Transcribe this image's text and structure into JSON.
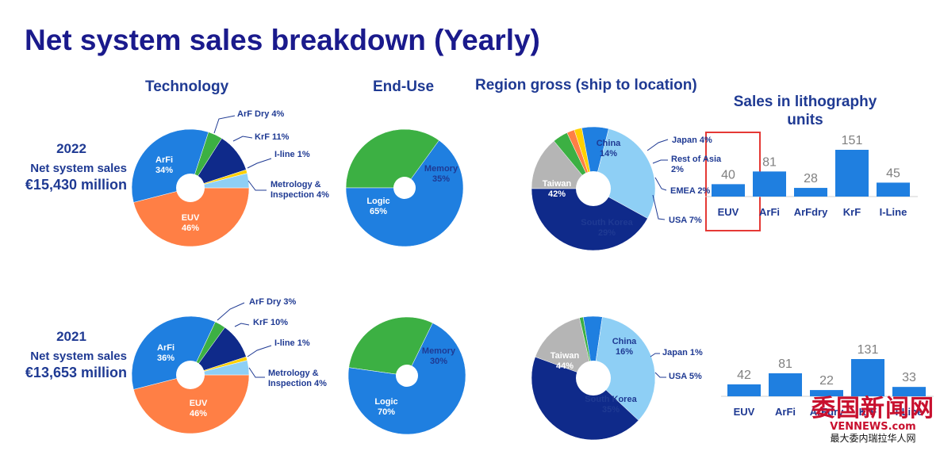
{
  "title": "Net system sales breakdown (Yearly)",
  "headers": {
    "technology": "Technology",
    "enduse": "End-Use",
    "region": "Region gross (ship to location)",
    "litho_line1": "Sales in lithography",
    "litho_line2": "units"
  },
  "rows": [
    {
      "year": "2022",
      "label": "Net system sales",
      "amount": "€15,430 million"
    },
    {
      "year": "2021",
      "label": "Net system sales",
      "amount": "€13,653 million"
    }
  ],
  "colors": {
    "title": "#1a1a8c",
    "navy": "#0f2a8a",
    "blue": "#1f7fe0",
    "orange": "#ff7f45",
    "green": "#3cb043",
    "lightblue": "#8ecff5",
    "yellow": "#ffd000",
    "gray": "#b5b5b5",
    "bar": "#1f7fe0",
    "highlight": "#e53935"
  },
  "chart_data": [
    {
      "type": "pie",
      "group": "Technology",
      "year": "2022",
      "slices": [
        {
          "name": "EUV",
          "value": 46,
          "color": "#ff7f45",
          "label": "EUV\n46%",
          "inside": true,
          "text_color": "#ffffff"
        },
        {
          "name": "ArFi",
          "value": 34,
          "color": "#1f7fe0",
          "label": "ArFi\n34%",
          "inside": true,
          "text_color": "#ffffff"
        },
        {
          "name": "ArF Dry",
          "value": 4,
          "color": "#3cb043",
          "label": "ArF Dry 4%",
          "inside": false
        },
        {
          "name": "KrF",
          "value": 11,
          "color": "#0f2a8a",
          "label": "KrF 11%",
          "inside": false
        },
        {
          "name": "I-line",
          "value": 1,
          "color": "#ffd000",
          "label": "I-line 1%",
          "inside": false
        },
        {
          "name": "Metrology & Inspection",
          "value": 4,
          "color": "#8ecff5",
          "label": "Metrology &\nInspection 4%",
          "inside": false
        }
      ]
    },
    {
      "type": "pie",
      "group": "End-Use",
      "year": "2022",
      "slices": [
        {
          "name": "Memory",
          "value": 35,
          "color": "#3cb043",
          "label": "Memory\n35%",
          "inside": true,
          "text_color": "#1f3a93"
        },
        {
          "name": "Logic",
          "value": 65,
          "color": "#1f7fe0",
          "label": "Logic\n65%",
          "inside": true,
          "text_color": "#ffffff"
        }
      ]
    },
    {
      "type": "pie",
      "group": "Region",
      "year": "2022",
      "slices": [
        {
          "name": "China",
          "value": 14,
          "color": "#b5b5b5",
          "label": "China\n14%",
          "inside": true,
          "text_color": "#1f3a93"
        },
        {
          "name": "Japan",
          "value": 4,
          "color": "#3cb043",
          "label": "Japan 4%",
          "inside": false
        },
        {
          "name": "Rest of Asia",
          "value": 2,
          "color": "#ff7f45",
          "label": "Rest of Asia\n2%",
          "inside": false
        },
        {
          "name": "EMEA",
          "value": 2,
          "color": "#ffd000",
          "label": "EMEA 2%",
          "inside": false
        },
        {
          "name": "USA",
          "value": 7,
          "color": "#1f7fe0",
          "label": "USA 7%",
          "inside": false
        },
        {
          "name": "South Korea",
          "value": 29,
          "color": "#8ecff5",
          "label": "South Korea\n29%",
          "inside": true,
          "text_color": "#1f3a93"
        },
        {
          "name": "Taiwan",
          "value": 42,
          "color": "#0f2a8a",
          "label": "Taiwan\n42%",
          "inside": true,
          "text_color": "#ffffff"
        }
      ]
    },
    {
      "type": "bar",
      "group": "Sales in lithography units",
      "year": "2022",
      "categories": [
        "EUV",
        "ArFi",
        "ArFdry",
        "KrF",
        "I-Line"
      ],
      "values": [
        40,
        81,
        28,
        151,
        45
      ]
    },
    {
      "type": "pie",
      "group": "Technology",
      "year": "2021",
      "slices": [
        {
          "name": "EUV",
          "value": 46,
          "color": "#ff7f45",
          "label": "EUV\n46%",
          "inside": true,
          "text_color": "#ffffff"
        },
        {
          "name": "ArFi",
          "value": 36,
          "color": "#1f7fe0",
          "label": "ArFi\n36%",
          "inside": true,
          "text_color": "#ffffff"
        },
        {
          "name": "ArF Dry",
          "value": 3,
          "color": "#3cb043",
          "label": "ArF Dry 3%",
          "inside": false
        },
        {
          "name": "KrF",
          "value": 10,
          "color": "#0f2a8a",
          "label": "KrF 10%",
          "inside": false
        },
        {
          "name": "I-line",
          "value": 1,
          "color": "#ffd000",
          "label": "I-line 1%",
          "inside": false
        },
        {
          "name": "Metrology & Inspection",
          "value": 4,
          "color": "#8ecff5",
          "label": "Metrology &\nInspection 4%",
          "inside": false
        }
      ]
    },
    {
      "type": "pie",
      "group": "End-Use",
      "year": "2021",
      "slices": [
        {
          "name": "Memory",
          "value": 30,
          "color": "#3cb043",
          "label": "Memory\n30%",
          "inside": true,
          "text_color": "#1f3a93"
        },
        {
          "name": "Logic",
          "value": 70,
          "color": "#1f7fe0",
          "label": "Logic\n70%",
          "inside": true,
          "text_color": "#ffffff"
        }
      ]
    },
    {
      "type": "pie",
      "group": "Region",
      "year": "2021",
      "slices": [
        {
          "name": "China",
          "value": 16,
          "color": "#b5b5b5",
          "label": "China\n16%",
          "inside": true,
          "text_color": "#1f3a93"
        },
        {
          "name": "Japan",
          "value": 1,
          "color": "#3cb043",
          "label": "Japan 1%",
          "inside": false
        },
        {
          "name": "USA",
          "value": 5,
          "color": "#1f7fe0",
          "label": "USA 5%",
          "inside": false
        },
        {
          "name": "South Korea",
          "value": 35,
          "color": "#8ecff5",
          "label": "South Korea\n35%",
          "inside": true,
          "text_color": "#1f3a93"
        },
        {
          "name": "Taiwan",
          "value": 44,
          "color": "#0f2a8a",
          "label": "Taiwan\n44%",
          "inside": true,
          "text_color": "#ffffff"
        }
      ]
    },
    {
      "type": "bar",
      "group": "Sales in lithography units",
      "year": "2021",
      "categories": [
        "EUV",
        "ArFi",
        "ArFdry",
        "KrF",
        "I-Line"
      ],
      "values": [
        42,
        81,
        22,
        131,
        33
      ]
    }
  ],
  "watermark": {
    "line1": "委国新闻网",
    "line2": "VENNEWS.com",
    "line3": "最大委内瑞拉华人网"
  }
}
